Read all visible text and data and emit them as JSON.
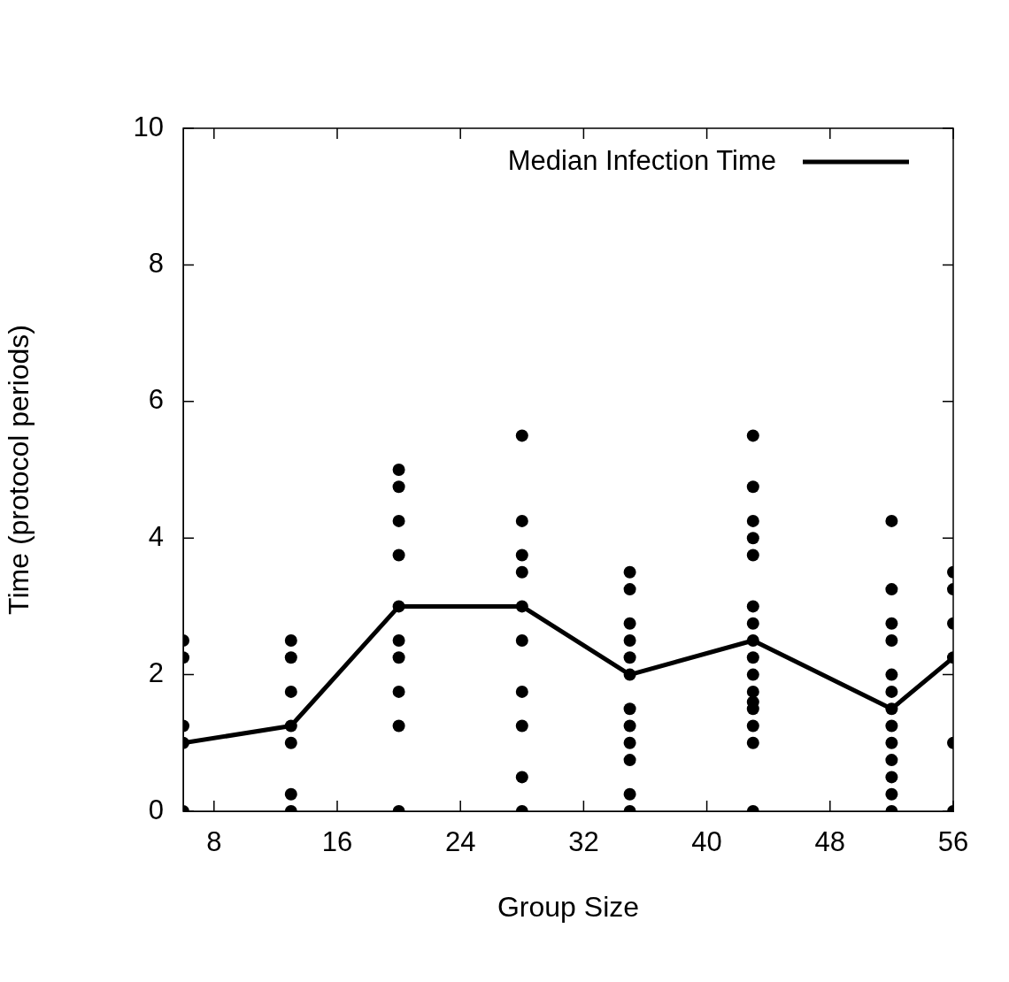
{
  "chart_data": {
    "type": "scatter",
    "xlabel": "Group Size",
    "ylabel": "Time (protocol periods)",
    "xlim": [
      6,
      56
    ],
    "xticks": [
      8,
      16,
      24,
      32,
      40,
      48,
      56
    ],
    "ylim": [
      0,
      10
    ],
    "yticks": [
      0,
      2,
      4,
      6,
      8,
      10
    ],
    "grid": false,
    "legend": "top right",
    "series": [
      {
        "color": "#000000",
        "marker": "circle",
        "x": [
          6,
          6,
          6,
          6,
          6,
          13,
          13,
          13,
          13,
          13,
          13,
          13,
          20,
          20,
          20,
          20,
          20,
          20,
          20,
          20,
          20,
          20,
          28,
          28,
          28,
          28,
          28,
          28,
          28,
          28,
          28,
          28,
          35,
          35,
          35,
          35,
          35,
          35,
          35,
          35,
          35,
          35,
          35,
          35,
          43,
          43,
          43,
          43,
          43,
          43,
          43,
          43,
          43,
          43,
          43,
          43,
          43,
          43,
          43,
          43,
          52,
          52,
          52,
          52,
          52,
          52,
          52,
          52,
          52,
          52,
          52,
          52,
          52,
          56,
          56,
          56,
          56,
          56,
          56
        ],
        "values": [
          2.5,
          2.25,
          1.25,
          1,
          0,
          2.5,
          2.25,
          1.75,
          1.25,
          1,
          0.25,
          0,
          5,
          4.75,
          4.25,
          3.75,
          3,
          2.5,
          2.25,
          1.75,
          1.25,
          0,
          5.5,
          4.25,
          3.75,
          3.5,
          3,
          2.5,
          1.75,
          1.25,
          0.5,
          0,
          3.5,
          3.25,
          2.75,
          2.5,
          2.25,
          2,
          1.5,
          1.25,
          1,
          0.75,
          0.25,
          0,
          5.5,
          4.75,
          4.25,
          4,
          3.75,
          3,
          2.75,
          2.5,
          2.25,
          2,
          1.75,
          1.6,
          1.5,
          1.25,
          1,
          0,
          4.25,
          3.25,
          2.75,
          2.5,
          2,
          1.75,
          1.5,
          1.25,
          1,
          0.75,
          0.5,
          0.25,
          0,
          3.5,
          3.25,
          2.75,
          2.25,
          1,
          0
        ]
      },
      {
        "type": "line",
        "name": "Median Infection Time",
        "color": "#000000",
        "marker": "none",
        "line_style": "solid",
        "x": [
          6,
          13,
          20,
          28,
          35,
          43,
          52,
          56
        ],
        "values": [
          1,
          1.25,
          3,
          3,
          2,
          2.5,
          1.5,
          2.25
        ]
      }
    ]
  }
}
